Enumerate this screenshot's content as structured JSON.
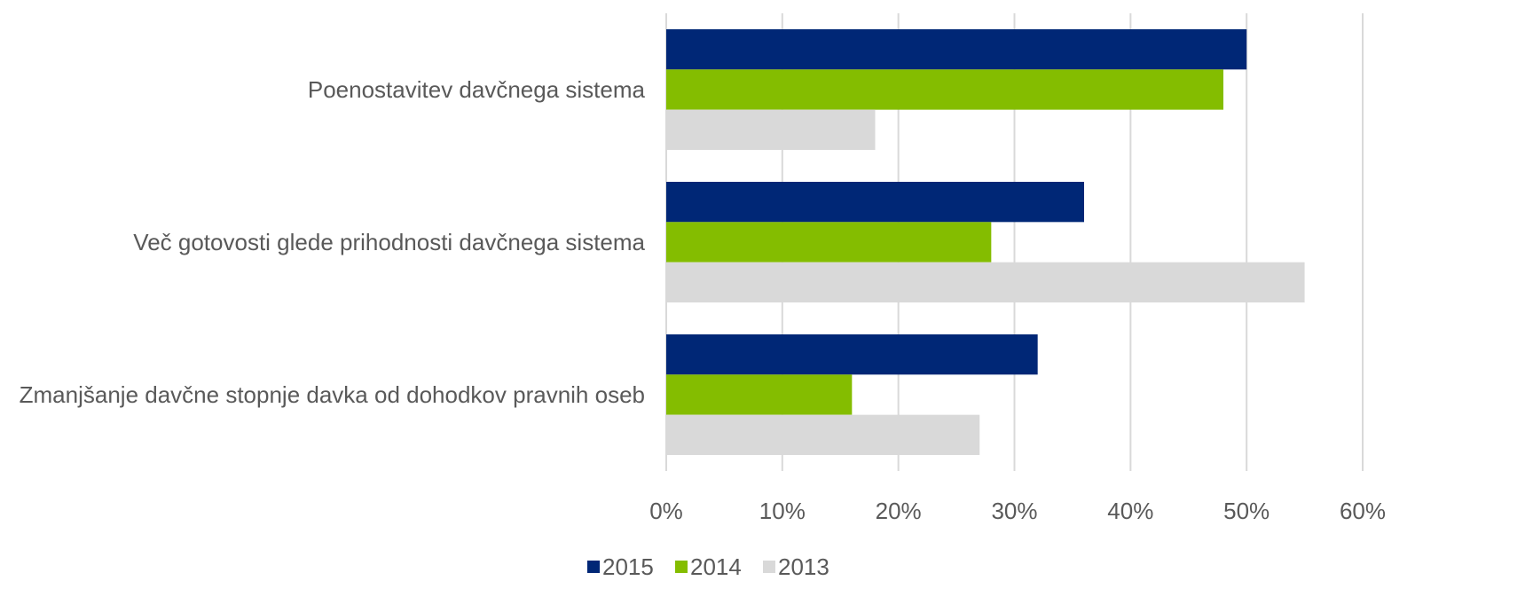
{
  "chart_data": {
    "type": "bar",
    "orientation": "horizontal",
    "categories": [
      "Poenostavitev davčnega sistema",
      "Več gotovosti glede prihodnosti davčnega sistema",
      "Zmanjšanje davčne stopnje davka od dohodkov pravnih oseb"
    ],
    "series": [
      {
        "name": "2015",
        "color": "#002776",
        "values": [
          50,
          36,
          32
        ]
      },
      {
        "name": "2014",
        "color": "#84bd00",
        "values": [
          48,
          28,
          16
        ]
      },
      {
        "name": "2013",
        "color": "#d9d9d9",
        "values": [
          18,
          55,
          27
        ]
      }
    ],
    "xlim": [
      0,
      60
    ],
    "xticks": [
      {
        "value": 0,
        "label": "0%"
      },
      {
        "value": 10,
        "label": "10%"
      },
      {
        "value": 20,
        "label": "20%"
      },
      {
        "value": 30,
        "label": "30%"
      },
      {
        "value": 40,
        "label": "40%"
      },
      {
        "value": 50,
        "label": "50%"
      },
      {
        "value": 60,
        "label": "60%"
      }
    ],
    "grid": true,
    "legend": "bottom"
  }
}
